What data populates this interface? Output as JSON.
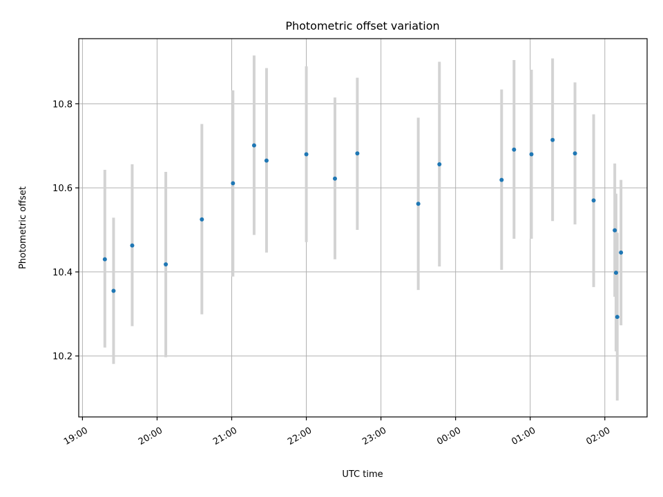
{
  "chart_data": {
    "type": "scatter",
    "title": "Photometric offset variation",
    "xlabel": "UTC time",
    "ylabel": "Photometric offset",
    "xlim": [
      "18:57",
      "02:34"
    ],
    "ylim": [
      10.055,
      10.955
    ],
    "x_ticks": [
      "19:00",
      "20:00",
      "21:00",
      "22:00",
      "23:00",
      "00:00",
      "01:00",
      "02:00"
    ],
    "y_ticks": [
      "10.2",
      "10.4",
      "10.6",
      "10.8"
    ],
    "grid": true,
    "marker_color": "#1f77b4",
    "errorbar_color": "#d3d3d3",
    "points": [
      {
        "x": "19:18",
        "y": 10.43,
        "lo": 10.22,
        "hi": 10.643
      },
      {
        "x": "19:25",
        "y": 10.355,
        "lo": 10.181,
        "hi": 10.529
      },
      {
        "x": "19:40",
        "y": 10.463,
        "lo": 10.271,
        "hi": 10.656
      },
      {
        "x": "20:07",
        "y": 10.418,
        "lo": 10.197,
        "hi": 10.638
      },
      {
        "x": "20:36",
        "y": 10.525,
        "lo": 10.299,
        "hi": 10.752
      },
      {
        "x": "21:01",
        "y": 10.611,
        "lo": 10.389,
        "hi": 10.832
      },
      {
        "x": "21:18",
        "y": 10.701,
        "lo": 10.488,
        "hi": 10.915
      },
      {
        "x": "21:28",
        "y": 10.665,
        "lo": 10.446,
        "hi": 10.885
      },
      {
        "x": "22:00",
        "y": 10.68,
        "lo": 10.471,
        "hi": 10.889
      },
      {
        "x": "22:23",
        "y": 10.622,
        "lo": 10.43,
        "hi": 10.815
      },
      {
        "x": "22:41",
        "y": 10.682,
        "lo": 10.5,
        "hi": 10.862
      },
      {
        "x": "23:30",
        "y": 10.562,
        "lo": 10.357,
        "hi": 10.767
      },
      {
        "x": "23:47",
        "y": 10.656,
        "lo": 10.413,
        "hi": 10.9
      },
      {
        "x": "00:37",
        "y": 10.619,
        "lo": 10.405,
        "hi": 10.834
      },
      {
        "x": "00:47",
        "y": 10.691,
        "lo": 10.479,
        "hi": 10.904
      },
      {
        "x": "01:01",
        "y": 10.68,
        "lo": 10.479,
        "hi": 10.881
      },
      {
        "x": "01:18",
        "y": 10.714,
        "lo": 10.521,
        "hi": 10.908
      },
      {
        "x": "01:36",
        "y": 10.682,
        "lo": 10.513,
        "hi": 10.851
      },
      {
        "x": "01:51",
        "y": 10.57,
        "lo": 10.364,
        "hi": 10.775
      },
      {
        "x": "02:08",
        "y": 10.499,
        "lo": 10.341,
        "hi": 10.658
      },
      {
        "x": "02:09",
        "y": 10.398,
        "lo": 10.211,
        "hi": 10.586
      },
      {
        "x": "02:10",
        "y": 10.293,
        "lo": 10.094,
        "hi": 10.493
      },
      {
        "x": "02:13",
        "y": 10.446,
        "lo": 10.273,
        "hi": 10.619
      }
    ]
  }
}
